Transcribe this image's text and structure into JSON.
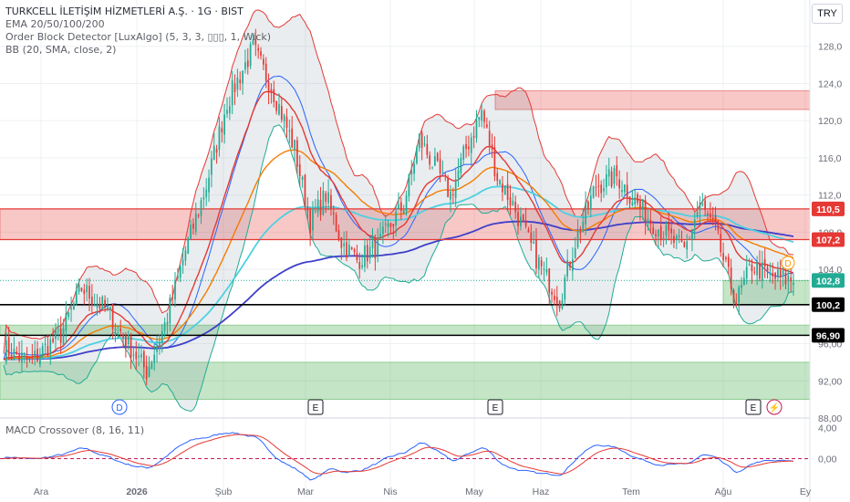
{
  "legend": {
    "title": "TURKCELL İLETİŞİM HİZMETLERİ A.Ş. · 1G · BIST",
    "ema": "EMA 20/50/100/200",
    "ob": "Order Block Detector [LuxAlgo] (5, 3, 3, ▯▯▯, 1, Wick)",
    "bb": "BB (20, SMA, close, 2)"
  },
  "macd_label": "MACD Crossover (8, 16, 11)",
  "currency": "TRY",
  "colors": {
    "up": "#22ab94",
    "down": "#e53935",
    "ema20": "#e53935",
    "ema50": "#f57c00",
    "ema100": "#4dd0e1",
    "ema200": "#3f3fc9",
    "bb": "#2962ff"
  },
  "chart_data": {
    "type": "candlestick",
    "ylim": [
      88,
      132
    ],
    "y_ticks": [
      "128,0",
      "124,0",
      "120,0",
      "116,0",
      "112,0",
      "108,0",
      "104,0",
      "100,0",
      "96,00",
      "92,00",
      "88,00"
    ],
    "x_ticks": [
      "Ara",
      "2026",
      "Şub",
      "Mar",
      "Nis",
      "May",
      "Haz",
      "Tem",
      "Ağu",
      "Ey"
    ],
    "price_labels": [
      {
        "value": 110.5,
        "text": "110,5",
        "color": "#e53935"
      },
      {
        "value": 107.2,
        "text": "107,2",
        "color": "#e53935"
      },
      {
        "value": 102.8,
        "text": "102,8",
        "color": "#22ab94"
      },
      {
        "value": 100.2,
        "text": "100,2",
        "color": "#000000"
      },
      {
        "value": 96.9,
        "text": "96,90",
        "color": "#000000"
      }
    ],
    "bearish_order_blocks": [
      {
        "top": 123.2,
        "bottom": 121.2
      },
      {
        "top": 110.5,
        "bottom": 107.2
      }
    ],
    "bullish_order_blocks": [
      {
        "top": 102.8,
        "bottom": 100.2
      },
      {
        "top": 98.0,
        "bottom": 96.9
      },
      {
        "top": 94.0,
        "bottom": 90.0
      }
    ],
    "horizontal_lines": [
      110.5,
      107.2,
      100.2,
      96.9
    ],
    "events": [
      {
        "label": "D",
        "x": "2026",
        "type": "dividend"
      },
      {
        "label": "E",
        "x": "Mar",
        "type": "earnings"
      },
      {
        "label": "E",
        "x": "May",
        "type": "earnings"
      },
      {
        "label": "E",
        "x": "Ağu",
        "type": "earnings"
      },
      {
        "label": "⚡",
        "x": "Ağu",
        "type": "news"
      }
    ],
    "macd": {
      "ylim": [
        -5,
        5
      ],
      "ticks": [
        "4,00",
        "0,00"
      ]
    }
  }
}
